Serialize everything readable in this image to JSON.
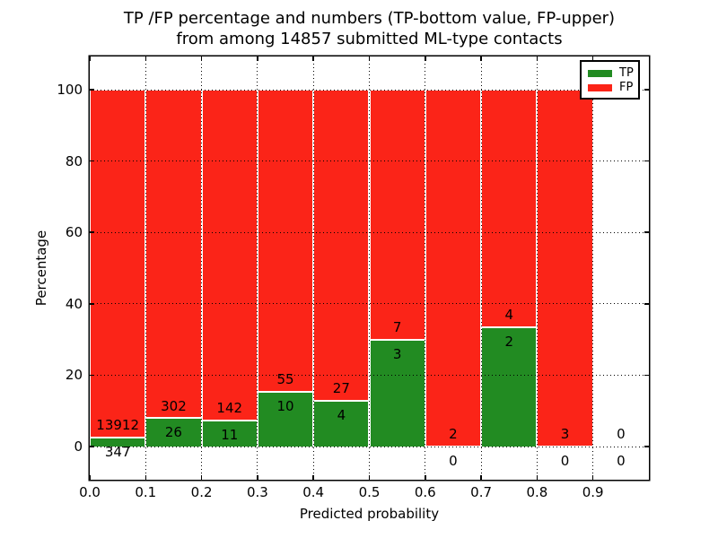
{
  "title": {
    "line1": "TP /FP percentage and numbers (TP-bottom value, FP-upper)",
    "line2": "from among 14857 submitted ML-type contacts"
  },
  "axes": {
    "ylabel": "Percentage",
    "xlabel": "Predicted probability",
    "yticks": [
      0,
      20,
      40,
      60,
      80,
      100
    ],
    "xticks": [
      "0.0",
      "0.1",
      "0.2",
      "0.3",
      "0.4",
      "0.5",
      "0.6",
      "0.7",
      "0.8",
      "0.9"
    ]
  },
  "legend": {
    "items": [
      {
        "label": "TP",
        "color_key": "tp"
      },
      {
        "label": "FP",
        "color_key": "fp"
      }
    ]
  },
  "chart_data": {
    "type": "bar",
    "stacked": true,
    "title": "TP /FP percentage and numbers (TP-bottom value, FP-upper) from among 14857 submitted ML-type contacts",
    "xlabel": "Predicted probability",
    "ylabel": "Percentage",
    "xlim": [
      0.0,
      1.0
    ],
    "ylim": [
      -9.3,
      109.3
    ],
    "grid": true,
    "grid_style": "dotted",
    "legend_position": "upper right",
    "bin_width": 0.1,
    "colors": {
      "tp": "#228B22",
      "fp": "#FB2418"
    },
    "series": [
      {
        "name": "TP",
        "color_key": "tp"
      },
      {
        "name": "FP",
        "color_key": "fp"
      }
    ],
    "bins": [
      {
        "x0": 0.0,
        "x1": 0.1,
        "tp_count": 347,
        "fp_count": 13912,
        "tp_pct": 2.43,
        "fp_pct": 97.57
      },
      {
        "x0": 0.1,
        "x1": 0.2,
        "tp_count": 26,
        "fp_count": 302,
        "tp_pct": 7.93,
        "fp_pct": 92.07
      },
      {
        "x0": 0.2,
        "x1": 0.3,
        "tp_count": 11,
        "fp_count": 142,
        "tp_pct": 7.19,
        "fp_pct": 92.81
      },
      {
        "x0": 0.3,
        "x1": 0.4,
        "tp_count": 10,
        "fp_count": 55,
        "tp_pct": 15.38,
        "fp_pct": 84.62
      },
      {
        "x0": 0.4,
        "x1": 0.5,
        "tp_count": 4,
        "fp_count": 27,
        "tp_pct": 12.9,
        "fp_pct": 87.1
      },
      {
        "x0": 0.5,
        "x1": 0.6,
        "tp_count": 3,
        "fp_count": 7,
        "tp_pct": 30.0,
        "fp_pct": 70.0
      },
      {
        "x0": 0.6,
        "x1": 0.7,
        "tp_count": 0,
        "fp_count": 2,
        "tp_pct": 0.0,
        "fp_pct": 100.0
      },
      {
        "x0": 0.7,
        "x1": 0.8,
        "tp_count": 2,
        "fp_count": 4,
        "tp_pct": 33.33,
        "fp_pct": 66.67
      },
      {
        "x0": 0.8,
        "x1": 0.9,
        "tp_count": 0,
        "fp_count": 3,
        "tp_pct": 0.0,
        "fp_pct": 100.0
      },
      {
        "x0": 0.9,
        "x1": 1.0,
        "tp_count": 0,
        "fp_count": 0,
        "tp_pct": null,
        "fp_pct": null
      }
    ]
  }
}
